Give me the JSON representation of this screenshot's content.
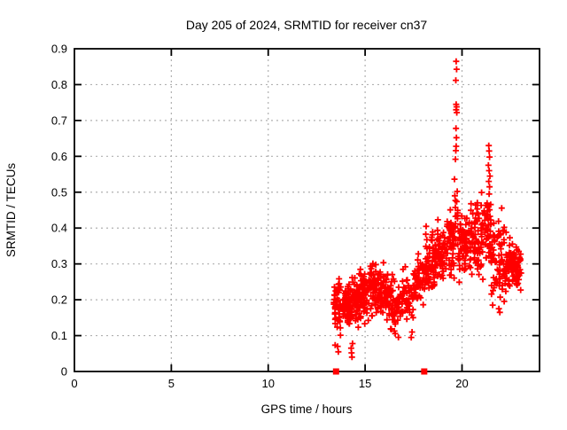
{
  "chart_data": {
    "type": "scatter",
    "title": "Day 205 of 2024, SRMTID for receiver cn37",
    "xlabel": "GPS time / hours",
    "ylabel": "SRMTID / TECUs",
    "xlim": [
      0,
      24
    ],
    "ylim": [
      0,
      0.9
    ],
    "x_tick_values": [
      0,
      5,
      10,
      15,
      20
    ],
    "x_tick_labels": [
      "0",
      "5",
      "10",
      "15",
      "20"
    ],
    "y_tick_values": [
      0,
      0.1,
      0.2,
      0.3,
      0.4,
      0.5,
      0.6,
      0.7,
      0.8,
      0.9
    ],
    "y_tick_labels": [
      "0",
      "0.1",
      "0.2",
      "0.3",
      "0.4",
      "0.5",
      "0.6",
      "0.7",
      "0.8",
      "0.9"
    ],
    "grid": true,
    "legend": "none",
    "marker": "plus",
    "marker_color": "#ff0000",
    "series_name": "SRMTID",
    "data_x_extent": [
      13.4,
      23.0
    ],
    "cluster_format": "[x_start_hours, x_end_hours, point_count, y_center, y_spread, y_min, y_max]",
    "clusters": [
      [
        13.38,
        13.8,
        50,
        0.17,
        0.055,
        0.05,
        0.3
      ],
      [
        13.8,
        14.2,
        55,
        0.185,
        0.04,
        0.1,
        0.28
      ],
      [
        14.2,
        14.7,
        60,
        0.19,
        0.045,
        0.06,
        0.3
      ],
      [
        14.7,
        15.2,
        65,
        0.21,
        0.045,
        0.12,
        0.31
      ],
      [
        15.2,
        15.8,
        70,
        0.235,
        0.05,
        0.13,
        0.35
      ],
      [
        15.8,
        16.3,
        60,
        0.22,
        0.05,
        0.1,
        0.33
      ],
      [
        16.3,
        16.9,
        55,
        0.185,
        0.06,
        0.07,
        0.3
      ],
      [
        16.9,
        17.5,
        50,
        0.21,
        0.05,
        0.09,
        0.32
      ],
      [
        17.5,
        18.1,
        55,
        0.25,
        0.05,
        0.14,
        0.38
      ],
      [
        18.1,
        18.6,
        60,
        0.3,
        0.06,
        0.17,
        0.47
      ],
      [
        18.6,
        19.2,
        65,
        0.33,
        0.06,
        0.2,
        0.52
      ],
      [
        19.2,
        19.6,
        45,
        0.36,
        0.07,
        0.22,
        0.55
      ],
      [
        19.6,
        19.8,
        18,
        0.42,
        0.08,
        0.3,
        0.58
      ],
      [
        19.8,
        20.4,
        70,
        0.36,
        0.06,
        0.22,
        0.52
      ],
      [
        20.4,
        21.0,
        65,
        0.37,
        0.07,
        0.15,
        0.52
      ],
      [
        21.0,
        21.5,
        55,
        0.4,
        0.09,
        0.18,
        0.63
      ],
      [
        21.5,
        22.2,
        70,
        0.32,
        0.08,
        0.15,
        0.6
      ],
      [
        22.2,
        22.7,
        60,
        0.3,
        0.05,
        0.18,
        0.42
      ],
      [
        22.7,
        23.05,
        45,
        0.29,
        0.04,
        0.2,
        0.38
      ]
    ],
    "outlier_points": [
      [
        13.58,
        0.07
      ],
      [
        13.62,
        0.055
      ],
      [
        14.28,
        0.065
      ],
      [
        14.3,
        0.052
      ],
      [
        14.32,
        0.04
      ],
      [
        14.35,
        0.078
      ],
      [
        17.38,
        0.095
      ],
      [
        17.42,
        0.11
      ],
      [
        19.66,
        0.592
      ],
      [
        19.68,
        0.616
      ],
      [
        19.7,
        0.628
      ],
      [
        19.71,
        0.652
      ],
      [
        19.69,
        0.678
      ],
      [
        19.7,
        0.73
      ],
      [
        19.72,
        0.738
      ],
      [
        19.73,
        0.722
      ],
      [
        19.7,
        0.745
      ],
      [
        19.68,
        0.812
      ],
      [
        19.72,
        0.843
      ],
      [
        19.7,
        0.865
      ],
      [
        21.36,
        0.575
      ],
      [
        21.38,
        0.63
      ],
      [
        21.4,
        0.615
      ],
      [
        21.42,
        0.598
      ],
      [
        21.4,
        0.56
      ],
      [
        21.44,
        0.545
      ],
      [
        21.38,
        0.53
      ],
      [
        21.42,
        0.515
      ],
      [
        21.4,
        0.495
      ],
      [
        21.9,
        0.175
      ],
      [
        21.95,
        0.165
      ]
    ],
    "axis_square_markers": [
      [
        13.5,
        0
      ],
      [
        18.05,
        0
      ]
    ],
    "random_seed": 7
  },
  "colors": {
    "points": "#ff0000",
    "grid": "#b0b0b0",
    "frame": "#000000",
    "background": "#ffffff",
    "text": "#000000"
  }
}
